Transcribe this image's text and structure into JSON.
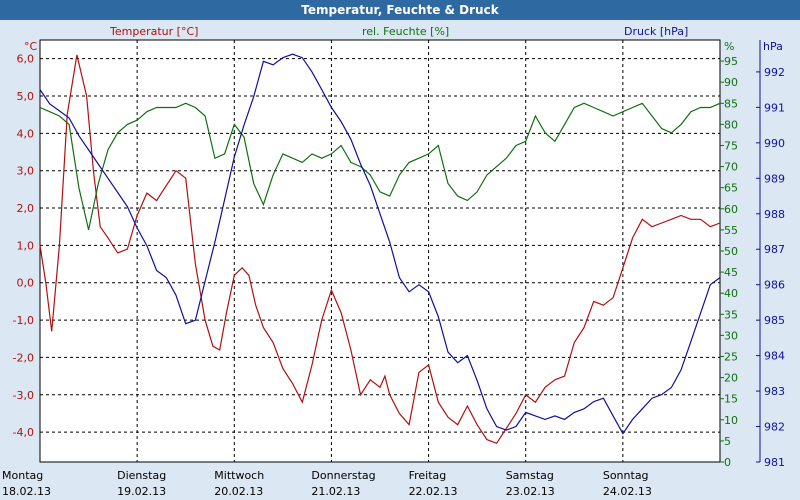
{
  "chart_data": {
    "type": "line",
    "title": "Temperatur, Feuchte & Druck",
    "grid": true,
    "colors": {
      "temperature": "#b01010",
      "humidity": "#107010",
      "pressure": "#10109a",
      "title_bar": "#2e6aa1"
    },
    "x_labels": [
      {
        "day": "Montag",
        "date": "18.02.13"
      },
      {
        "day": "Dienstag",
        "date": "19.02.13"
      },
      {
        "day": "Mittwoch",
        "date": "20.02.13"
      },
      {
        "day": "Donnerstag",
        "date": "21.02.13"
      },
      {
        "day": "Freitag",
        "date": "22.02.13"
      },
      {
        "day": "Samstag",
        "date": "23.02.13"
      },
      {
        "day": "Sonntag",
        "date": "24.02.13"
      }
    ],
    "x_days": [
      0,
      7
    ],
    "axes": {
      "temperature": {
        "unit": "°C",
        "min": -4.8,
        "max": 6.5,
        "ticks": [
          "6,0",
          "5,0",
          "4,0",
          "3,0",
          "2,0",
          "1,0",
          "0,0",
          "-1,0",
          "-2,0",
          "-3,0",
          "-4,0"
        ],
        "tick_values": [
          6,
          5,
          4,
          3,
          2,
          1,
          0,
          -1,
          -2,
          -3,
          -4
        ]
      },
      "humidity": {
        "unit": "%",
        "min": 0,
        "max": 100,
        "ticks": [
          "0",
          "5",
          "10",
          "15",
          "20",
          "25",
          "30",
          "35",
          "40",
          "45",
          "50",
          "55",
          "60",
          "65",
          "70",
          "75",
          "80",
          "85",
          "90",
          "95",
          "100"
        ],
        "tick_values": [
          0,
          5,
          10,
          15,
          20,
          25,
          30,
          35,
          40,
          45,
          50,
          55,
          60,
          65,
          70,
          75,
          80,
          85,
          90,
          95,
          100
        ]
      },
      "pressure": {
        "unit": "hPa",
        "min": 981,
        "max": 992.9,
        "ticks": [
          "992",
          "991",
          "990",
          "989",
          "988",
          "987",
          "986",
          "985",
          "984",
          "983",
          "982",
          "981"
        ],
        "tick_values": [
          992,
          991,
          990,
          989,
          988,
          987,
          986,
          985,
          984,
          983,
          982,
          981
        ]
      }
    },
    "series": [
      {
        "key": "temperature",
        "name": "Temperatur [°C]",
        "x": [
          0,
          0.06,
          0.12,
          0.2,
          0.28,
          0.38,
          0.48,
          0.55,
          0.62,
          0.7,
          0.8,
          0.9,
          1,
          1.1,
          1.2,
          1.3,
          1.4,
          1.5,
          1.6,
          1.7,
          1.78,
          1.85,
          1.92,
          2,
          2.08,
          2.15,
          2.22,
          2.3,
          2.4,
          2.5,
          2.6,
          2.7,
          2.8,
          2.9,
          3,
          3.1,
          3.2,
          3.3,
          3.4,
          3.5,
          3.55,
          3.6,
          3.7,
          3.8,
          3.9,
          4,
          4.1,
          4.2,
          4.3,
          4.4,
          4.5,
          4.6,
          4.7,
          4.8,
          4.9,
          5,
          5.1,
          5.2,
          5.3,
          5.4,
          5.5,
          5.6,
          5.7,
          5.8,
          5.9,
          6,
          6.1,
          6.2,
          6.3,
          6.4,
          6.5,
          6.6,
          6.7,
          6.8,
          6.9,
          7
        ],
        "y": [
          1,
          0,
          -1.3,
          1,
          4.5,
          6.1,
          5,
          3,
          1.5,
          1.2,
          0.8,
          0.9,
          1.8,
          2.4,
          2.2,
          2.6,
          3,
          2.8,
          0.5,
          -1,
          -1.7,
          -1.8,
          -0.8,
          0.2,
          0.4,
          0.2,
          -0.6,
          -1.2,
          -1.6,
          -2.3,
          -2.7,
          -3.2,
          -2.2,
          -1,
          -0.2,
          -0.8,
          -1.8,
          -3,
          -2.6,
          -2.8,
          -2.5,
          -3,
          -3.5,
          -3.8,
          -2.4,
          -2.2,
          -3.2,
          -3.6,
          -3.8,
          -3.3,
          -3.8,
          -4.2,
          -4.3,
          -3.9,
          -3.5,
          -3,
          -3.2,
          -2.8,
          -2.6,
          -2.5,
          -1.6,
          -1.2,
          -0.5,
          -0.6,
          -0.4,
          0.4,
          1.2,
          1.7,
          1.5,
          1.6,
          1.7,
          1.8,
          1.7,
          1.7,
          1.5,
          1.6
        ]
      },
      {
        "key": "humidity",
        "name": "rel. Feuchte [%]",
        "x": [
          0,
          0.1,
          0.2,
          0.3,
          0.4,
          0.5,
          0.6,
          0.7,
          0.8,
          0.9,
          1,
          1.1,
          1.2,
          1.3,
          1.4,
          1.5,
          1.6,
          1.7,
          1.8,
          1.9,
          2,
          2.1,
          2.2,
          2.3,
          2.4,
          2.5,
          2.6,
          2.7,
          2.8,
          2.9,
          3,
          3.1,
          3.2,
          3.3,
          3.4,
          3.5,
          3.6,
          3.7,
          3.8,
          3.9,
          4,
          4.1,
          4.2,
          4.3,
          4.4,
          4.5,
          4.6,
          4.7,
          4.8,
          4.9,
          5,
          5.1,
          5.2,
          5.3,
          5.4,
          5.5,
          5.6,
          5.7,
          5.8,
          5.9,
          6,
          6.1,
          6.2,
          6.3,
          6.4,
          6.5,
          6.6,
          6.7,
          6.8,
          6.9,
          7
        ],
        "y": [
          84,
          83,
          82,
          80,
          65,
          55,
          66,
          74,
          78,
          80,
          81,
          83,
          84,
          84,
          84,
          85,
          84,
          82,
          72,
          73,
          80,
          77,
          66,
          61,
          68,
          73,
          72,
          71,
          73,
          72,
          73,
          75,
          71,
          70,
          68,
          64,
          63,
          68,
          71,
          72,
          73,
          75,
          66,
          63,
          62,
          64,
          68,
          70,
          72,
          75,
          76,
          82,
          78,
          76,
          80,
          84,
          85,
          84,
          83,
          82,
          83,
          84,
          85,
          82,
          79,
          78,
          80,
          83,
          84,
          84,
          85
        ]
      },
      {
        "key": "pressure",
        "name": "Druck [hPa]",
        "x": [
          0,
          0.1,
          0.2,
          0.3,
          0.4,
          0.5,
          0.6,
          0.7,
          0.8,
          0.9,
          1,
          1.1,
          1.2,
          1.3,
          1.4,
          1.5,
          1.6,
          1.7,
          1.8,
          1.9,
          2,
          2.1,
          2.2,
          2.3,
          2.4,
          2.5,
          2.6,
          2.7,
          2.8,
          2.9,
          3,
          3.1,
          3.2,
          3.3,
          3.4,
          3.5,
          3.6,
          3.7,
          3.8,
          3.9,
          4,
          4.1,
          4.2,
          4.3,
          4.4,
          4.5,
          4.6,
          4.7,
          4.8,
          4.9,
          5,
          5.1,
          5.2,
          5.3,
          5.4,
          5.5,
          5.6,
          5.7,
          5.8,
          5.9,
          6,
          6.1,
          6.2,
          6.3,
          6.4,
          6.5,
          6.6,
          6.7,
          6.8,
          6.9,
          7
        ],
        "y": [
          991.5,
          991.1,
          990.9,
          990.7,
          990.2,
          989.8,
          989.4,
          989,
          988.6,
          988.2,
          987.6,
          987.1,
          986.4,
          986.2,
          985.7,
          984.9,
          985,
          986.1,
          987.2,
          988.4,
          989.6,
          990.5,
          991.3,
          992.3,
          992.2,
          992.4,
          992.5,
          992.4,
          992,
          991.5,
          991,
          990.6,
          990.1,
          989.4,
          988.8,
          988,
          987.2,
          986.2,
          985.8,
          986,
          985.8,
          985.1,
          984.1,
          983.8,
          984,
          983.3,
          982.5,
          982,
          981.9,
          982,
          982.4,
          982.3,
          982.2,
          982.3,
          982.2,
          982.4,
          982.5,
          982.7,
          982.8,
          982.3,
          981.8,
          982.2,
          982.5,
          982.8,
          982.9,
          983.1,
          983.6,
          984.4,
          985.2,
          986,
          986.2
        ]
      }
    ]
  }
}
